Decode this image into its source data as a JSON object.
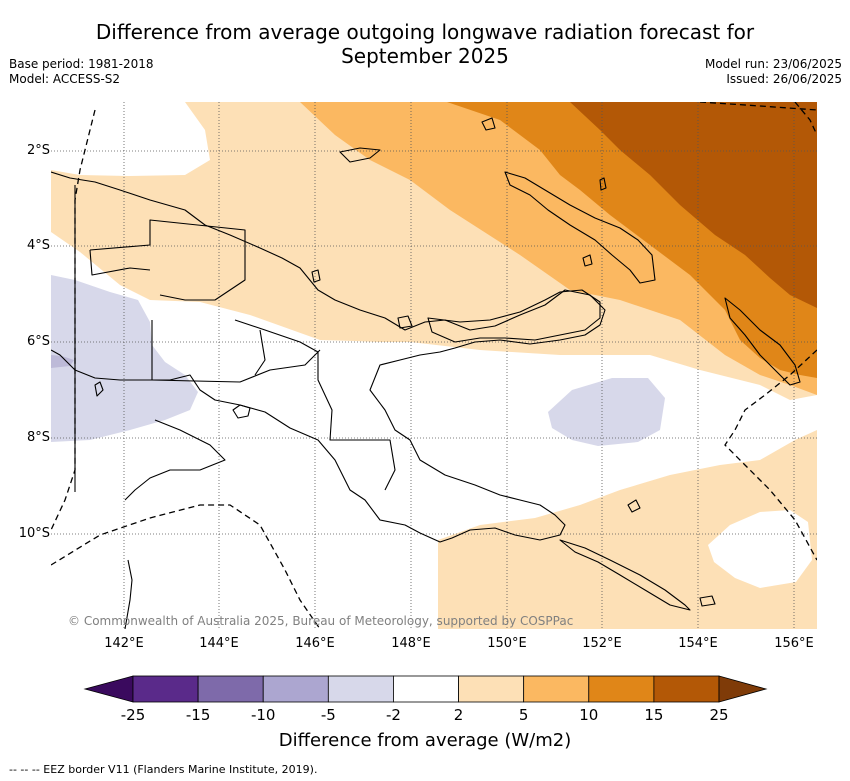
{
  "title": {
    "line1": "Difference from average outgoing longwave radiation forecast for",
    "line2": "September 2025"
  },
  "meta_left": {
    "base_period": "Base period: 1981-2018",
    "model": "Model: ACCESS-S2"
  },
  "meta_right": {
    "model_run": "Model run: 23/06/2025",
    "issued": "Issued: 26/06/2025"
  },
  "axes": {
    "lat_labels": [
      "2°S",
      "4°S",
      "6°S",
      "8°S",
      "10°S"
    ],
    "lon_labels": [
      "142°E",
      "144°E",
      "146°E",
      "148°E",
      "150°E",
      "152°E",
      "154°E",
      "156°E"
    ]
  },
  "copyright": "© Commonwealth of Australia 2025, Bureau of Meteorology, supported by COSPPac",
  "colorbar": {
    "ticks": [
      "-25",
      "-15",
      "-10",
      "-5",
      "-2",
      "2",
      "5",
      "10",
      "15",
      "25"
    ],
    "colors": [
      "#3a0a5e",
      "#5a2a8a",
      "#7e6aaa",
      "#aca6d0",
      "#d7d8ea",
      "#ffffff",
      "#fde0b6",
      "#fbb861",
      "#e08618",
      "#b35806",
      "#7f3b08"
    ],
    "label": "Difference from average (W/m2)"
  },
  "eez_note": "-- -- -- EEZ border V11 (Flanders Marine Institute, 2019)."
}
